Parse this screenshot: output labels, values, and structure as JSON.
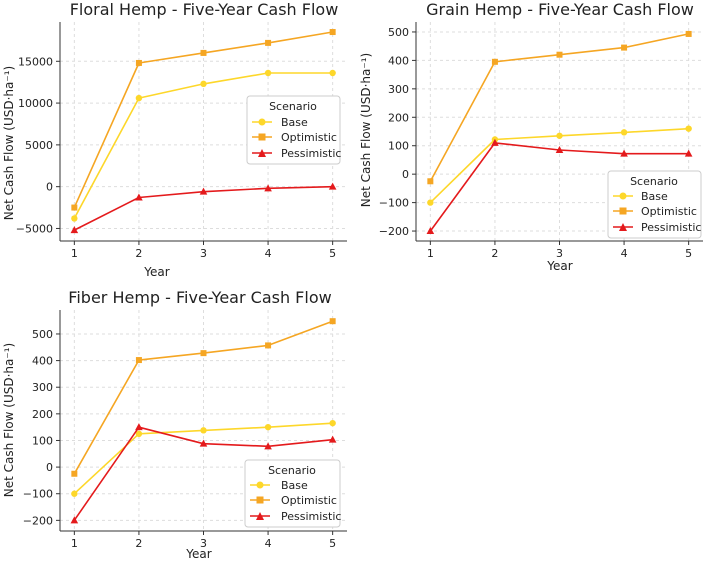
{
  "chart_data": [
    {
      "type": "line",
      "title": "Floral Hemp - Five-Year Cash Flow",
      "xlabel": "Year",
      "ylabel": "Net Cash Flow (USD·ha⁻¹)",
      "x": [
        1,
        2,
        3,
        4,
        5
      ],
      "xticks": [
        1,
        2,
        3,
        4,
        5
      ],
      "yticks": [
        -5000,
        0,
        5000,
        10000,
        15000
      ],
      "ylim": [
        -6500,
        19700
      ],
      "grid": true,
      "legend": {
        "title": "Scenario",
        "placement": "center-right"
      },
      "series": [
        {
          "name": "Base",
          "color": "#fdd72a",
          "marker": "circle",
          "values": [
            -3800,
            10600,
            12300,
            13600,
            13600
          ]
        },
        {
          "name": "Optimistic",
          "color": "#f5a623",
          "marker": "square",
          "values": [
            -2500,
            14800,
            16000,
            17200,
            18500
          ]
        },
        {
          "name": "Pessimistic",
          "color": "#e41a1c",
          "marker": "triangle",
          "values": [
            -5200,
            -1300,
            -600,
            -200,
            0
          ]
        }
      ]
    },
    {
      "type": "line",
      "title": "Grain Hemp - Five-Year Cash Flow",
      "xlabel": "Year",
      "ylabel": "Net Cash Flow (USD·ha⁻¹)",
      "x": [
        1,
        2,
        3,
        4,
        5
      ],
      "xticks": [
        1,
        2,
        3,
        4,
        5
      ],
      "yticks": [
        -200,
        -100,
        0,
        100,
        200,
        300,
        400,
        500
      ],
      "ylim": [
        -235,
        535
      ],
      "grid": true,
      "legend": {
        "title": "Scenario",
        "placement": "lower-right"
      },
      "series": [
        {
          "name": "Base",
          "color": "#fdd72a",
          "marker": "circle",
          "values": [
            -100,
            122,
            135,
            147,
            160
          ]
        },
        {
          "name": "Optimistic",
          "color": "#f5a623",
          "marker": "square",
          "values": [
            -25,
            395,
            420,
            445,
            493
          ]
        },
        {
          "name": "Pessimistic",
          "color": "#e41a1c",
          "marker": "triangle",
          "values": [
            -200,
            110,
            85,
            72,
            72
          ]
        }
      ]
    },
    {
      "type": "line",
      "title": "Fiber Hemp - Five-Year Cash Flow",
      "xlabel": "Year",
      "ylabel": "Net Cash Flow (USD·ha⁻¹)",
      "x": [
        1,
        2,
        3,
        4,
        5
      ],
      "xticks": [
        1,
        2,
        3,
        4,
        5
      ],
      "yticks": [
        -200,
        -100,
        0,
        100,
        200,
        300,
        400,
        500
      ],
      "ylim": [
        -240,
        590
      ],
      "grid": true,
      "legend": {
        "title": "Scenario",
        "placement": "lower-right"
      },
      "series": [
        {
          "name": "Base",
          "color": "#fdd72a",
          "marker": "circle",
          "values": [
            -100,
            125,
            138,
            150,
            165
          ]
        },
        {
          "name": "Optimistic",
          "color": "#f5a623",
          "marker": "square",
          "values": [
            -25,
            402,
            428,
            457,
            548
          ]
        },
        {
          "name": "Pessimistic",
          "color": "#e41a1c",
          "marker": "triangle",
          "values": [
            -200,
            150,
            88,
            78,
            103
          ]
        }
      ]
    }
  ]
}
